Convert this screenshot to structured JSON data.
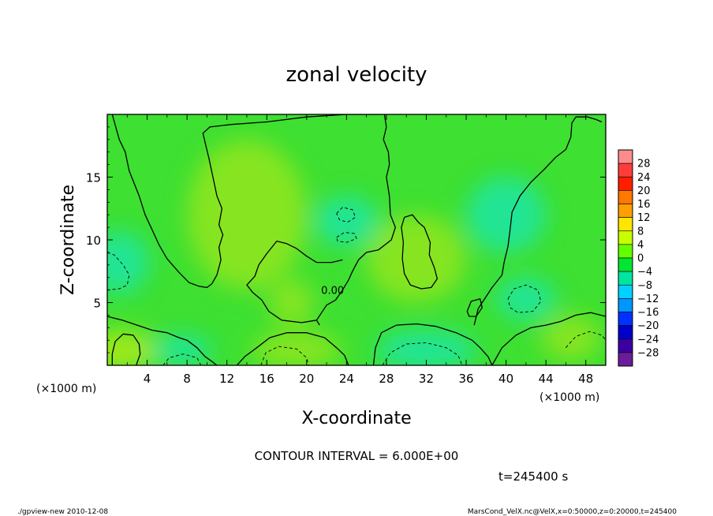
{
  "chart_data": {
    "type": "heatmap",
    "title": "zonal velocity",
    "xlabel": "X-coordinate",
    "ylabel": "Z-coordinate",
    "x_unit": "(×1000 m)",
    "y_unit": "(×1000 m)",
    "xlim": [
      0,
      50
    ],
    "ylim": [
      0,
      20
    ],
    "x_ticks": [
      4,
      8,
      12,
      16,
      20,
      24,
      28,
      32,
      36,
      40,
      44,
      48
    ],
    "y_ticks": [
      5,
      10,
      15
    ],
    "x_tick_labels": [
      "4",
      "8",
      "12",
      "16",
      "20",
      "24",
      "28",
      "32",
      "36",
      "40",
      "44",
      "48"
    ],
    "y_tick_labels": [
      "5",
      "10",
      "15"
    ],
    "colorbar": {
      "levels": [
        28,
        24,
        20,
        16,
        12,
        8,
        4,
        0,
        -4,
        -8,
        -12,
        -16,
        -20,
        -24,
        -28
      ],
      "labels": [
        "28",
        "24",
        "20",
        "16",
        "12",
        "8",
        "4",
        "0",
        "−4",
        "−8",
        "−12",
        "−16",
        "−20",
        "−24",
        "−28"
      ],
      "colors": [
        "#ff8c8c",
        "#ff3c3c",
        "#ff1e00",
        "#ff7800",
        "#ffa000",
        "#ffe600",
        "#c8ff00",
        "#64ff00",
        "#00e632",
        "#00e6a0",
        "#00d2ff",
        "#0096ff",
        "#0032ff",
        "#0000c8",
        "#3c00a0",
        "#6a1c9a"
      ]
    },
    "contour_labels": [
      {
        "x": 22.6,
        "z": 5.7,
        "text": "0.00"
      }
    ],
    "contour_interval_text": "CONTOUR INTERVAL = 6.000E+00",
    "time_text": "t=245400 s",
    "footer_left": "./gpview-new  2010-12-08",
    "footer_right": "MarsCond_VelX.nc@VelX,x=0:50000,z=0:20000,t=245400",
    "fill_colors": {
      "base": "#3ee032",
      "positive": "#8ee61e",
      "positive_strong": "#a8ea1a",
      "negative": "#1ee6a0",
      "negative_strong": "#18e0cc"
    },
    "fill_regions": [
      {
        "cx": 14,
        "cz": 12,
        "rx": 6,
        "rz": 6,
        "level": "positive"
      },
      {
        "cx": 31,
        "cz": 8.5,
        "rx": 5,
        "rz": 3.5,
        "level": "positive"
      },
      {
        "cx": 18.5,
        "cz": 5,
        "rx": 2.2,
        "rz": 1.8,
        "level": "positive"
      },
      {
        "cx": 1.5,
        "cz": 1.2,
        "rx": 3.5,
        "rz": 1.6,
        "level": "positive_strong"
      },
      {
        "cx": 46.5,
        "cz": 2.2,
        "rx": 3,
        "rz": 1.8,
        "level": "positive"
      },
      {
        "cx": 19,
        "cz": 1.2,
        "rx": 4.5,
        "rz": 1.5,
        "level": "positive"
      },
      {
        "cx": 1.2,
        "cz": 8.2,
        "rx": 3,
        "rz": 2.5,
        "level": "negative"
      },
      {
        "cx": 32,
        "cz": 1.2,
        "rx": 5,
        "rz": 1.6,
        "level": "negative"
      },
      {
        "cx": 42,
        "cz": 5.3,
        "rx": 3,
        "rz": 1.7,
        "level": "negative"
      },
      {
        "cx": 24,
        "cz": 11.5,
        "rx": 3.2,
        "rz": 2,
        "level": "negative"
      },
      {
        "cx": 7.5,
        "cz": 1.2,
        "rx": 3,
        "rz": 1.2,
        "level": "negative"
      },
      {
        "cx": 40,
        "cz": 12,
        "rx": 4,
        "rz": 3,
        "level": "negative"
      }
    ],
    "zero_contours": [
      [
        [
          0.5,
          20
        ],
        [
          1.2,
          18
        ],
        [
          1.8,
          17
        ],
        [
          2.2,
          15.5
        ],
        [
          3.2,
          13.5
        ],
        [
          3.8,
          12
        ],
        [
          4.5,
          10.8
        ],
        [
          5.2,
          9.6
        ],
        [
          6,
          8.5
        ],
        [
          7.2,
          7.4
        ],
        [
          8.2,
          6.6
        ],
        [
          9.2,
          6.3
        ],
        [
          10,
          6.2
        ],
        [
          10.5,
          6.5
        ],
        [
          11,
          7.2
        ],
        [
          11.4,
          8.4
        ],
        [
          11.2,
          9.4
        ],
        [
          11.6,
          10.4
        ],
        [
          11.2,
          11.2
        ],
        [
          11.5,
          12.5
        ],
        [
          11,
          13.5
        ],
        [
          10.6,
          15
        ],
        [
          10.2,
          16.5
        ],
        [
          9.8,
          17.8
        ],
        [
          9.6,
          18.5
        ],
        [
          10.3,
          19
        ],
        [
          12.5,
          19.2
        ],
        [
          16,
          19.4
        ],
        [
          20,
          19.8
        ],
        [
          24,
          20
        ],
        [
          27.5,
          20
        ]
      ],
      [
        [
          27.8,
          20
        ],
        [
          28,
          19
        ],
        [
          27.7,
          18
        ],
        [
          28.2,
          17
        ],
        [
          28.3,
          16
        ],
        [
          28,
          15
        ],
        [
          28.3,
          13.5
        ],
        [
          28.4,
          12
        ],
        [
          28.9,
          11
        ],
        [
          28.5,
          10
        ],
        [
          27.2,
          9.2
        ],
        [
          26,
          9
        ],
        [
          25.2,
          8.4
        ],
        [
          24.6,
          7.5
        ],
        [
          24.2,
          6.8
        ],
        [
          23.6,
          6
        ],
        [
          22.9,
          5.2
        ],
        [
          22,
          4.8
        ],
        [
          21.5,
          4.2
        ],
        [
          21,
          3.6
        ],
        [
          21.3,
          3.2
        ]
      ],
      [
        [
          21,
          3.6
        ],
        [
          19.5,
          3.4
        ],
        [
          17.5,
          3.6
        ],
        [
          16.2,
          4.3
        ],
        [
          15.5,
          5.2
        ],
        [
          14.6,
          5.8
        ],
        [
          14,
          6.4
        ],
        [
          14.8,
          7.1
        ],
        [
          15.2,
          8
        ],
        [
          16,
          8.9
        ],
        [
          17,
          9.9
        ],
        [
          18,
          9.7
        ],
        [
          19,
          9.3
        ],
        [
          20,
          8.7
        ],
        [
          21,
          8.2
        ],
        [
          22.5,
          8.2
        ],
        [
          23.6,
          8.4
        ]
      ],
      [
        [
          0,
          3.9
        ],
        [
          1.5,
          3.6
        ],
        [
          3,
          3.2
        ],
        [
          4.5,
          2.8
        ],
        [
          6,
          2.6
        ],
        [
          7.2,
          2.2
        ],
        [
          8,
          2
        ],
        [
          9,
          1.4
        ],
        [
          9.8,
          0.7
        ],
        [
          10.5,
          0.3
        ],
        [
          11,
          0
        ]
      ],
      [
        [
          13,
          0
        ],
        [
          13.8,
          0.7
        ],
        [
          15,
          1.4
        ],
        [
          16.3,
          2.2
        ],
        [
          18,
          2.6
        ],
        [
          20,
          2.6
        ],
        [
          21.8,
          2.2
        ],
        [
          23,
          1.4
        ],
        [
          23.8,
          0.8
        ],
        [
          24.2,
          0
        ]
      ],
      [
        [
          26.7,
          0
        ],
        [
          26.9,
          1.4
        ],
        [
          27.5,
          2.6
        ],
        [
          29,
          3.2
        ],
        [
          31,
          3.3
        ],
        [
          33,
          3.1
        ],
        [
          35,
          2.6
        ],
        [
          36.6,
          2
        ],
        [
          37.4,
          1.4
        ],
        [
          38.2,
          0.7
        ],
        [
          38.6,
          0
        ]
      ],
      [
        [
          38.6,
          0
        ],
        [
          39.6,
          1.4
        ],
        [
          41,
          2.4
        ],
        [
          42.5,
          3
        ],
        [
          44,
          3.2
        ],
        [
          45.5,
          3.5
        ],
        [
          47,
          4
        ],
        [
          48.5,
          4.2
        ],
        [
          50,
          3.9
        ]
      ],
      [
        [
          36.8,
          3.2
        ],
        [
          37.2,
          4.5
        ],
        [
          38.6,
          6.2
        ],
        [
          39.6,
          7.2
        ],
        [
          39.8,
          8.2
        ],
        [
          40.2,
          9.5
        ],
        [
          40.4,
          10.8
        ],
        [
          40.6,
          12.2
        ],
        [
          41.4,
          13.5
        ],
        [
          42.5,
          14.6
        ],
        [
          43.8,
          15.6
        ],
        [
          45,
          16.6
        ],
        [
          46,
          17.2
        ],
        [
          46.5,
          18.2
        ],
        [
          46.6,
          19.3
        ],
        [
          47,
          19.8
        ],
        [
          48.2,
          19.8
        ],
        [
          49,
          19.6
        ],
        [
          49.6,
          19.4
        ]
      ],
      [
        [
          29.8,
          11.8
        ],
        [
          30.6,
          12
        ],
        [
          31.2,
          11.4
        ],
        [
          31.8,
          11
        ],
        [
          32.4,
          9.8
        ],
        [
          32.3,
          8.8
        ],
        [
          32.8,
          7.8
        ],
        [
          33.1,
          6.9
        ],
        [
          32.5,
          6.2
        ],
        [
          31.5,
          6.1
        ],
        [
          30.4,
          6.4
        ],
        [
          29.8,
          7.3
        ],
        [
          29.6,
          8.5
        ],
        [
          29.7,
          9.8
        ],
        [
          29.5,
          11
        ],
        [
          29.8,
          11.8
        ]
      ],
      [
        [
          36.1,
          4.3
        ],
        [
          36.5,
          5.1
        ],
        [
          37.4,
          5.3
        ],
        [
          37.6,
          4.6
        ],
        [
          37,
          3.9
        ],
        [
          36.3,
          3.9
        ],
        [
          36.1,
          4.3
        ]
      ],
      [
        [
          0.5,
          0
        ],
        [
          0.5,
          0.9
        ],
        [
          0.8,
          1.9
        ],
        [
          1.6,
          2.5
        ],
        [
          2.6,
          2.4
        ],
        [
          3.2,
          1.7
        ],
        [
          3.3,
          0.9
        ],
        [
          2.9,
          0
        ]
      ]
    ],
    "negative_dashed_contours": [
      [
        [
          0,
          9
        ],
        [
          0.7,
          8.8
        ],
        [
          1.6,
          8
        ],
        [
          2.2,
          7.2
        ],
        [
          2,
          6.4
        ],
        [
          1.2,
          6.1
        ],
        [
          0,
          6
        ]
      ],
      [
        [
          27.6,
          0
        ],
        [
          28.4,
          1
        ],
        [
          30,
          1.7
        ],
        [
          32,
          1.8
        ],
        [
          34,
          1.4
        ],
        [
          35.2,
          0.8
        ],
        [
          35.6,
          0
        ]
      ],
      [
        [
          40.2,
          5.3
        ],
        [
          40.8,
          6.1
        ],
        [
          42,
          6.4
        ],
        [
          43.2,
          6
        ],
        [
          43.5,
          5.1
        ],
        [
          42.7,
          4.3
        ],
        [
          41.2,
          4.2
        ],
        [
          40.4,
          4.6
        ],
        [
          40.2,
          5.3
        ]
      ],
      [
        [
          23,
          12.1
        ],
        [
          23.6,
          12.6
        ],
        [
          24.6,
          12.4
        ],
        [
          24.9,
          11.8
        ],
        [
          24.1,
          11.4
        ],
        [
          23.3,
          11.6
        ],
        [
          23,
          12.1
        ]
      ],
      [
        [
          23,
          10.2
        ],
        [
          23.8,
          10.6
        ],
        [
          24.8,
          10.5
        ],
        [
          25,
          10.1
        ],
        [
          24,
          9.8
        ],
        [
          23.1,
          9.9
        ],
        [
          23,
          10.2
        ]
      ],
      [
        [
          15.4,
          0
        ],
        [
          15.9,
          1
        ],
        [
          17.2,
          1.5
        ],
        [
          19,
          1.3
        ],
        [
          20,
          0.6
        ],
        [
          20.2,
          0
        ]
      ],
      [
        [
          5.6,
          0
        ],
        [
          6.2,
          0.6
        ],
        [
          7.6,
          0.9
        ],
        [
          9,
          0.6
        ],
        [
          9.4,
          0
        ]
      ],
      [
        [
          46,
          1.4
        ],
        [
          47,
          2.3
        ],
        [
          48.4,
          2.7
        ],
        [
          49.6,
          2.4
        ],
        [
          50,
          2
        ]
      ]
    ]
  }
}
